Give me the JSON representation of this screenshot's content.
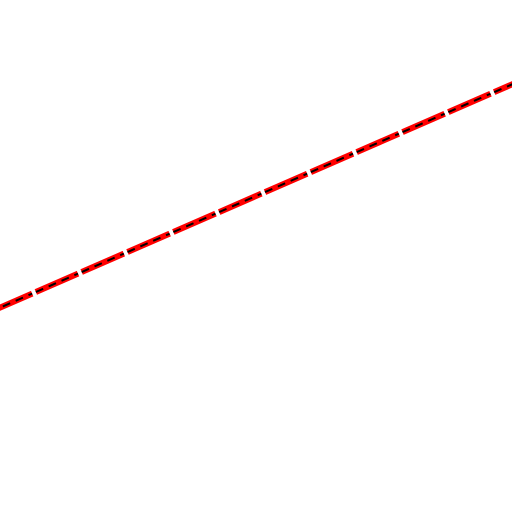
{
  "canvas": {
    "background_color": "#ffffff"
  },
  "line": {
    "style": "dashed",
    "stroke_color": "#ff0000",
    "dash_stroke_color": "#000000",
    "gap_color": "#ffffff"
  }
}
